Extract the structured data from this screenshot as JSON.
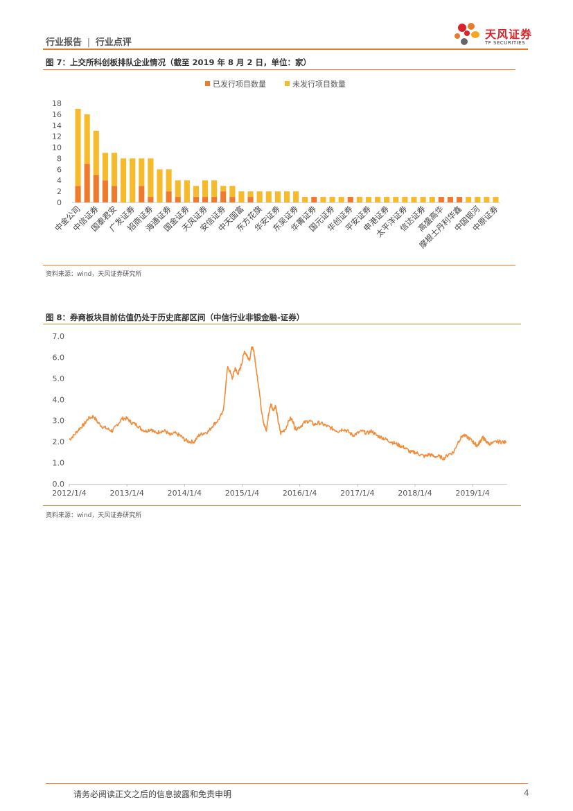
{
  "header": {
    "section": "行业报告",
    "sep": "|",
    "sub": "行业点评"
  },
  "logo": {
    "cn": "天风证券",
    "en": "TF SECURITIES"
  },
  "figure7": {
    "title": "图 7：上交所科创板排队企业情况（截至 2019 年 8 月 2 日，单位：家）",
    "source": "资料来源：wind，天风证券研究所"
  },
  "figure8": {
    "title": "图 8：券商板块目前估值仍处于历史底部区间（中信行业非银金融-证券）",
    "source": "资料来源：wind，天风证券研究所"
  },
  "footer": {
    "disclaimer": "请务必阅读正文之后的信息披露和免责申明",
    "page": "4"
  },
  "colors": {
    "orange": "#ee7a2e",
    "yellow": "#f6bb2d",
    "accent": "#e47c2c",
    "line": "#f08c3a"
  },
  "chart_data": [
    {
      "type": "bar",
      "stacked": true,
      "legend": [
        "已发行项目数量",
        "未发行项目数量"
      ],
      "legend_position": "top-center",
      "categories": [
        "中金公司",
        "",
        "中信证券",
        "",
        "国泰君安",
        "",
        "广发证券",
        "",
        "招商证券",
        "",
        "海通证券",
        "",
        "国金证券",
        "",
        "天风证券",
        "",
        "安信证券",
        "",
        "中天国富",
        "",
        "东方花旗",
        "",
        "华安证券",
        "",
        "东吴证券",
        "",
        "华菁证券",
        "",
        "国元证券",
        "",
        "华创证券",
        "",
        "平安证券",
        "",
        "申港证券",
        "",
        "太平洋证券",
        "",
        "信达证券",
        "",
        "高盛高华",
        "",
        "摩根士丹利华鑫",
        "",
        "中国银河",
        "",
        "中原证券"
      ],
      "series": [
        {
          "name": "已发行项目数量",
          "values": [
            3,
            7,
            5,
            4,
            3,
            0,
            0,
            3,
            1,
            0,
            2,
            1,
            0,
            1,
            1,
            1,
            2,
            1,
            0,
            1,
            0,
            0,
            0,
            0,
            0,
            0,
            1,
            0,
            0,
            0,
            1,
            0,
            0,
            0,
            0,
            0,
            0,
            0,
            0,
            0,
            1,
            1,
            1,
            0,
            0,
            0,
            0
          ]
        },
        {
          "name": "未发行项目数量",
          "values": [
            14,
            9,
            8,
            5,
            6,
            8,
            8,
            5,
            7,
            6,
            4,
            3,
            4,
            2,
            3,
            3,
            1,
            2,
            2,
            1,
            2,
            2,
            2,
            2,
            2,
            1,
            0,
            1,
            1,
            1,
            0,
            1,
            1,
            1,
            1,
            1,
            1,
            1,
            1,
            1,
            0,
            0,
            0,
            1,
            1,
            1,
            1
          ]
        }
      ],
      "y_ticks": [
        0,
        2,
        4,
        6,
        8,
        10,
        12,
        14,
        16,
        18
      ],
      "ylim": [
        0,
        18
      ]
    },
    {
      "type": "line",
      "title": "",
      "x_ticks": [
        "2012/1/4",
        "2013/1/4",
        "2014/1/4",
        "2015/1/4",
        "2016/1/4",
        "2017/1/4",
        "2018/1/4",
        "2019/1/4"
      ],
      "y_ticks": [
        "0.0",
        "1.0",
        "2.0",
        "3.0",
        "4.0",
        "5.0",
        "6.0",
        "7.0"
      ],
      "ylim": [
        0,
        7
      ],
      "xlim": [
        2012.0,
        2019.6
      ],
      "series": [
        {
          "name": "中信行业非银金融-证券 PB",
          "x": [
            2012.0,
            2012.08,
            2012.17,
            2012.25,
            2012.33,
            2012.42,
            2012.5,
            2012.58,
            2012.67,
            2012.75,
            2012.83,
            2012.92,
            2013.0,
            2013.08,
            2013.17,
            2013.25,
            2013.33,
            2013.42,
            2013.5,
            2013.58,
            2013.67,
            2013.75,
            2013.83,
            2013.92,
            2014.0,
            2014.08,
            2014.17,
            2014.25,
            2014.33,
            2014.42,
            2014.5,
            2014.58,
            2014.67,
            2014.75,
            2014.83,
            2014.88,
            2014.92,
            2014.96,
            2015.0,
            2015.04,
            2015.08,
            2015.13,
            2015.17,
            2015.21,
            2015.25,
            2015.29,
            2015.33,
            2015.38,
            2015.42,
            2015.46,
            2015.5,
            2015.54,
            2015.58,
            2015.63,
            2015.67,
            2015.75,
            2015.83,
            2015.88,
            2015.92,
            2016.0,
            2016.08,
            2016.17,
            2016.25,
            2016.33,
            2016.42,
            2016.5,
            2016.58,
            2016.67,
            2016.75,
            2016.83,
            2016.92,
            2017.0,
            2017.08,
            2017.17,
            2017.25,
            2017.33,
            2017.42,
            2017.5,
            2017.58,
            2017.67,
            2017.75,
            2017.83,
            2017.92,
            2018.0,
            2018.08,
            2018.17,
            2018.25,
            2018.33,
            2018.42,
            2018.5,
            2018.58,
            2018.67,
            2018.75,
            2018.83,
            2018.92,
            2019.0,
            2019.04,
            2019.08,
            2019.13,
            2019.17,
            2019.21,
            2019.25,
            2019.33,
            2019.42,
            2019.5,
            2019.58
          ],
          "y": [
            2.1,
            2.3,
            2.6,
            2.8,
            3.1,
            3.2,
            2.9,
            2.7,
            2.6,
            2.5,
            2.8,
            3.1,
            3.1,
            2.9,
            2.8,
            2.6,
            2.5,
            2.6,
            2.4,
            2.5,
            2.5,
            2.3,
            2.4,
            2.3,
            2.1,
            2.0,
            2.0,
            2.3,
            2.4,
            2.5,
            2.8,
            3.0,
            3.4,
            5.6,
            5.0,
            5.5,
            5.2,
            5.4,
            5.8,
            6.3,
            6.1,
            5.9,
            6.5,
            6.2,
            5.3,
            4.6,
            3.6,
            2.8,
            2.5,
            3.3,
            3.8,
            3.5,
            3.7,
            2.9,
            2.4,
            2.6,
            3.1,
            3.0,
            2.6,
            2.7,
            2.9,
            3.0,
            2.8,
            2.9,
            2.8,
            2.7,
            2.6,
            2.5,
            2.6,
            2.5,
            2.3,
            2.4,
            2.5,
            2.4,
            2.5,
            2.3,
            2.2,
            2.1,
            2.0,
            1.9,
            1.8,
            1.7,
            1.5,
            1.5,
            1.4,
            1.3,
            1.4,
            1.3,
            1.3,
            1.2,
            1.4,
            1.5,
            2.0,
            2.3,
            2.2,
            2.0,
            1.9,
            1.8,
            2.0,
            2.2,
            2.1,
            1.95,
            1.9,
            2.0,
            2.0,
            1.95
          ]
        }
      ]
    }
  ]
}
